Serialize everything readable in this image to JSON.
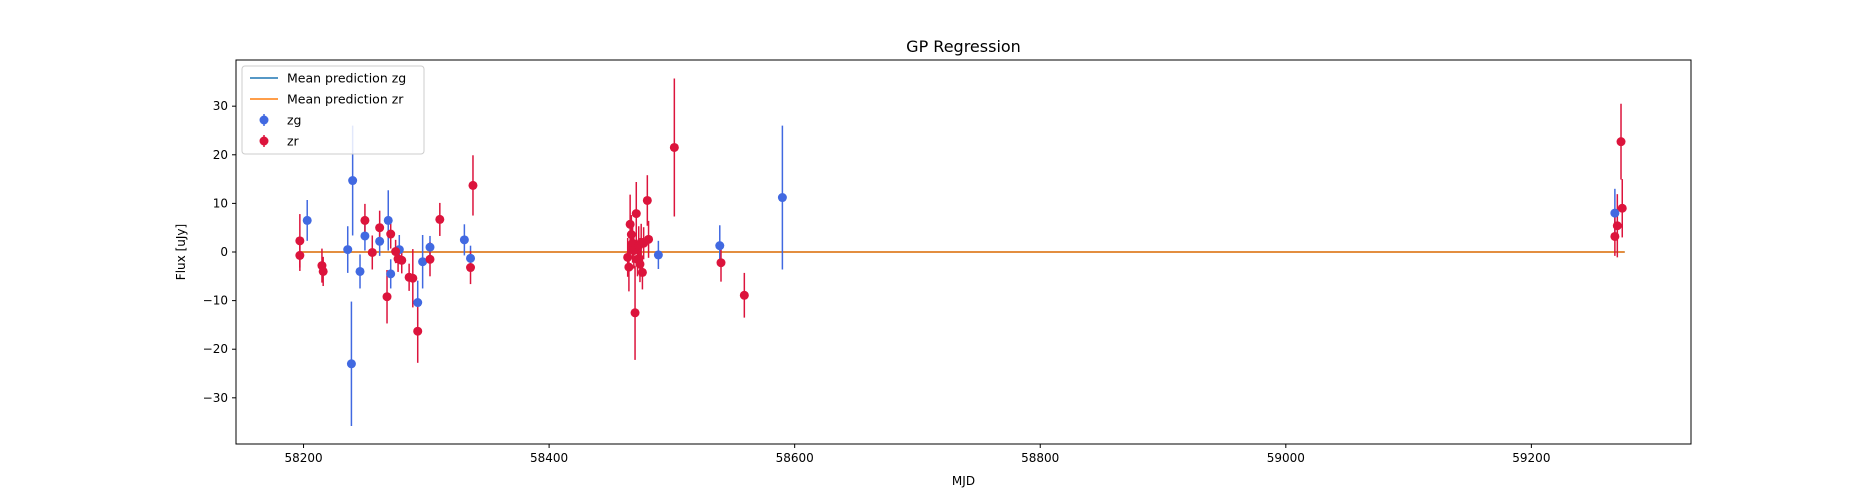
{
  "chart_data": {
    "type": "scatter",
    "title": "GP Regression",
    "xlabel": "MJD",
    "ylabel": "Flux [uJy]",
    "xlim": [
      58145,
      59330
    ],
    "ylim": [
      -39.5,
      39.5
    ],
    "xticks": [
      58200,
      58400,
      58600,
      58800,
      59000,
      59200
    ],
    "yticks": [
      -30,
      -20,
      -10,
      0,
      10,
      20,
      30
    ],
    "grid": false,
    "legend_position": "upper-left",
    "lines": [
      {
        "name": "Mean prediction zg",
        "color": "#1f77b4",
        "x": [
          58198,
          59276
        ],
        "y": [
          0,
          0
        ]
      },
      {
        "name": "Mean prediction zr",
        "color": "#ff7f0e",
        "x": [
          58198,
          59276
        ],
        "y": [
          0,
          0
        ]
      }
    ],
    "series": [
      {
        "name": "zg",
        "color": "#4169e1",
        "points": [
          {
            "x": 58203,
            "y": 6.5,
            "err": 4.2
          },
          {
            "x": 58236,
            "y": 0.5,
            "err": 4.8
          },
          {
            "x": 58239,
            "y": -23.0,
            "err": 12.8
          },
          {
            "x": 58240,
            "y": 14.7,
            "err": 11.3
          },
          {
            "x": 58246,
            "y": -4.0,
            "err": 3.5
          },
          {
            "x": 58250,
            "y": 3.3,
            "err": 3.0
          },
          {
            "x": 58262,
            "y": 2.2,
            "err": 3.0
          },
          {
            "x": 58269,
            "y": 6.5,
            "err": 6.2
          },
          {
            "x": 58271,
            "y": -4.5,
            "err": 3.0
          },
          {
            "x": 58278,
            "y": 0.5,
            "err": 3.0
          },
          {
            "x": 58293,
            "y": -10.4,
            "err": 4.5
          },
          {
            "x": 58297,
            "y": -2.0,
            "err": 5.5
          },
          {
            "x": 58303,
            "y": 1.0,
            "err": 2.3
          },
          {
            "x": 58331,
            "y": 2.5,
            "err": 3.2
          },
          {
            "x": 58336,
            "y": -1.3,
            "err": 2.6
          },
          {
            "x": 58489,
            "y": -0.6,
            "err": 2.9
          },
          {
            "x": 58539,
            "y": 1.3,
            "err": 4.2
          },
          {
            "x": 58590,
            "y": 11.2,
            "err": 14.8
          },
          {
            "x": 59268,
            "y": 8.0,
            "err": 5.0
          }
        ]
      },
      {
        "name": "zr",
        "color": "#dc143c",
        "points": [
          {
            "x": 58197,
            "y": 2.3,
            "err": 5.5
          },
          {
            "x": 58197,
            "y": -0.7,
            "err": 3.2
          },
          {
            "x": 58215,
            "y": -2.8,
            "err": 3.5
          },
          {
            "x": 58216,
            "y": -4.0,
            "err": 3.0
          },
          {
            "x": 58250,
            "y": 6.5,
            "err": 3.4
          },
          {
            "x": 58256,
            "y": -0.1,
            "err": 3.5
          },
          {
            "x": 58262,
            "y": 5.0,
            "err": 3.5
          },
          {
            "x": 58268,
            "y": -9.2,
            "err": 5.5
          },
          {
            "x": 58271,
            "y": 3.7,
            "err": 3.0
          },
          {
            "x": 58275,
            "y": 0.1,
            "err": 2.4
          },
          {
            "x": 58277,
            "y": -1.4,
            "err": 2.7
          },
          {
            "x": 58280,
            "y": -1.7,
            "err": 2.7
          },
          {
            "x": 58286,
            "y": -5.2,
            "err": 2.8
          },
          {
            "x": 58289,
            "y": -5.4,
            "err": 6.0
          },
          {
            "x": 58293,
            "y": -16.3,
            "err": 6.5
          },
          {
            "x": 58303,
            "y": -1.5,
            "err": 3.5
          },
          {
            "x": 58311,
            "y": 6.7,
            "err": 3.4
          },
          {
            "x": 58336,
            "y": -3.2,
            "err": 3.4
          },
          {
            "x": 58338,
            "y": 13.7,
            "err": 6.2
          },
          {
            "x": 58464,
            "y": -1.1,
            "err": 4.0
          },
          {
            "x": 58465,
            "y": -3.1,
            "err": 5.0
          },
          {
            "x": 58466,
            "y": 5.7,
            "err": 6.1
          },
          {
            "x": 58467,
            "y": 3.6,
            "err": 4.0
          },
          {
            "x": 58468,
            "y": 1.8,
            "err": 4.0
          },
          {
            "x": 58469,
            "y": 0.3,
            "err": 3.7
          },
          {
            "x": 58470,
            "y": -12.5,
            "err": 9.7
          },
          {
            "x": 58471,
            "y": 7.9,
            "err": 6.5
          },
          {
            "x": 58472,
            "y": -1.5,
            "err": 3.5
          },
          {
            "x": 58473,
            "y": 1.3,
            "err": 4.0
          },
          {
            "x": 58474,
            "y": -2.5,
            "err": 3.7
          },
          {
            "x": 58475,
            "y": 2.0,
            "err": 3.8
          },
          {
            "x": 58476,
            "y": -4.2,
            "err": 3.5
          },
          {
            "x": 58477,
            "y": 1.8,
            "err": 3.3
          },
          {
            "x": 58480,
            "y": 10.6,
            "err": 5.2
          },
          {
            "x": 58481,
            "y": 2.6,
            "err": 3.8
          },
          {
            "x": 58502,
            "y": 21.5,
            "err": 14.2
          },
          {
            "x": 58540,
            "y": -2.2,
            "err": 3.9
          },
          {
            "x": 58559,
            "y": -8.9,
            "err": 4.6
          },
          {
            "x": 59268,
            "y": 3.2,
            "err": 4.0
          },
          {
            "x": 59270,
            "y": 5.4,
            "err": 6.5
          },
          {
            "x": 59273,
            "y": 22.7,
            "err": 7.8
          },
          {
            "x": 59274,
            "y": 9.0,
            "err": 6.0
          }
        ]
      }
    ]
  }
}
